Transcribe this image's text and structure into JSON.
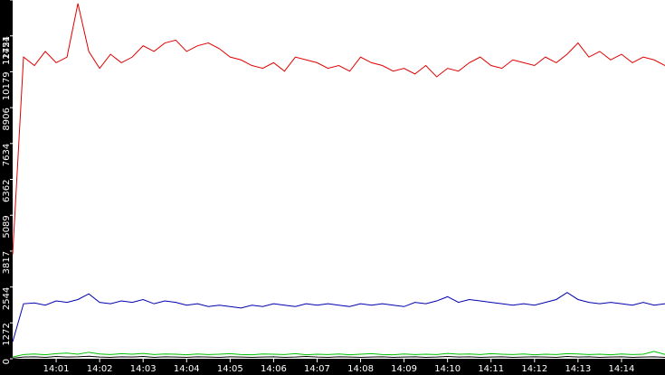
{
  "chart_data": {
    "type": "line",
    "x": [
      840,
      840.25,
      840.5,
      840.75,
      841,
      841.25,
      841.5,
      841.75,
      842,
      842.25,
      842.5,
      842.75,
      843,
      843.25,
      843.5,
      843.75,
      844,
      844.25,
      844.5,
      844.75,
      845,
      845.25,
      845.5,
      845.75,
      846,
      846.25,
      846.5,
      846.75,
      847,
      847.25,
      847.5,
      847.75,
      848,
      848.25,
      848.5,
      848.75,
      849,
      849.25,
      849.5,
      849.75,
      850,
      850.25,
      850.5,
      850.75,
      851,
      851.25,
      851.5,
      851.75,
      852,
      852.25,
      852.5,
      852.75,
      853,
      853.25,
      853.5,
      853.75,
      854,
      854.25,
      854.5,
      854.75,
      855
    ],
    "xlim": [
      840,
      855
    ],
    "xticks": [
      {
        "value": 841,
        "label": "14:01"
      },
      {
        "value": 842,
        "label": "14:02"
      },
      {
        "value": 843,
        "label": "14:03"
      },
      {
        "value": 844,
        "label": "14:04"
      },
      {
        "value": 845,
        "label": "14:05"
      },
      {
        "value": 846,
        "label": "14:06"
      },
      {
        "value": 847,
        "label": "14:07"
      },
      {
        "value": 848,
        "label": "14:08"
      },
      {
        "value": 849,
        "label": "14:09"
      },
      {
        "value": 850,
        "label": "14:10"
      },
      {
        "value": 851,
        "label": "14:11"
      },
      {
        "value": 852,
        "label": "14:12"
      },
      {
        "value": 853,
        "label": "14:13"
      },
      {
        "value": 854,
        "label": "14:14"
      }
    ],
    "ylim": [
      0,
      12724
    ],
    "yticks": [
      0,
      1272,
      2544,
      3817,
      5089,
      6362,
      7634,
      8906,
      10179,
      11451,
      12724
    ],
    "series": [
      {
        "color": "#e00000",
        "values": [
          3700,
          10700,
          10400,
          10900,
          10500,
          10700,
          12600,
          10900,
          10300,
          10800,
          10500,
          10700,
          11100,
          10900,
          11200,
          11300,
          10900,
          11100,
          11200,
          11000,
          10700,
          10600,
          10400,
          10300,
          10500,
          10200,
          10700,
          10600,
          10500,
          10300,
          10400,
          10200,
          10700,
          10500,
          10400,
          10200,
          10300,
          10100,
          10400,
          10000,
          10300,
          10200,
          10500,
          10700,
          10400,
          10300,
          10600,
          10500,
          10400,
          10700,
          10500,
          10800,
          11200,
          10700,
          10900,
          10600,
          10800,
          10500,
          10700,
          10600,
          10400
        ]
      },
      {
        "color": "#0000b0",
        "values": [
          600,
          1950,
          1980,
          1900,
          2050,
          2000,
          2100,
          2300,
          2000,
          1950,
          2050,
          2000,
          2100,
          1950,
          2050,
          2000,
          1900,
          1950,
          1850,
          1900,
          1850,
          1800,
          1900,
          1850,
          1950,
          1900,
          1850,
          1950,
          1900,
          1950,
          1900,
          1850,
          1950,
          1900,
          1950,
          1900,
          1850,
          2000,
          1950,
          2050,
          2200,
          2000,
          2100,
          2050,
          2000,
          1950,
          1900,
          1950,
          1900,
          2000,
          2100,
          2350,
          2100,
          2000,
          1950,
          2000,
          1950,
          1900,
          2000,
          1900,
          1950
        ]
      },
      {
        "color": "#00c000",
        "values": [
          60,
          150,
          170,
          140,
          180,
          200,
          160,
          230,
          170,
          150,
          180,
          160,
          190,
          150,
          170,
          160,
          140,
          170,
          150,
          160,
          180,
          150,
          140,
          170,
          160,
          150,
          180,
          140,
          160,
          150,
          170,
          140,
          160,
          180,
          150,
          140,
          170,
          150,
          160,
          150,
          190,
          160,
          170,
          150,
          180,
          160,
          150,
          170,
          140,
          160,
          150,
          180,
          170,
          150,
          160,
          140,
          170,
          150,
          160,
          260,
          150
        ]
      },
      {
        "color": "#000000",
        "values": [
          20,
          60,
          70,
          50,
          80,
          60,
          70,
          90,
          60,
          50,
          70,
          60,
          80,
          50,
          70,
          60,
          50,
          70,
          60,
          50,
          70,
          60,
          50,
          60,
          70,
          50,
          60,
          80,
          60,
          50,
          70,
          60,
          50,
          60,
          70,
          50,
          60,
          70,
          50,
          60,
          80,
          60,
          70,
          50,
          60,
          70,
          50,
          60,
          70,
          60,
          50,
          80,
          60,
          70,
          50,
          60,
          70,
          50,
          60,
          70,
          50
        ]
      }
    ]
  }
}
